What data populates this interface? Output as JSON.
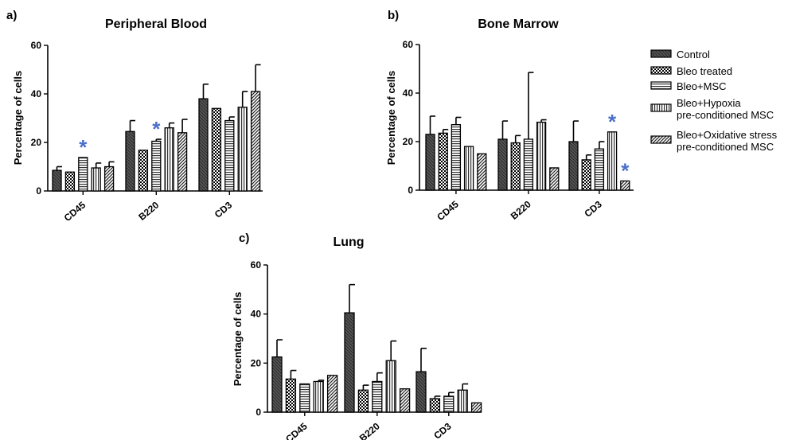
{
  "colors": {
    "star": "#4a6fc9"
  },
  "legend": [
    {
      "label": "Control",
      "pattern": "p-control"
    },
    {
      "label": "Bleo treated",
      "pattern": "p-checker"
    },
    {
      "label": "Bleo+MSC",
      "pattern": "p-hlines"
    },
    {
      "label": "Bleo+Hypoxia",
      "label2": "pre-conditioned MSC",
      "pattern": "p-vlines"
    },
    {
      "label": "Bleo+Oxidative stress",
      "label2": "pre-conditioned MSC",
      "pattern": "p-diag"
    }
  ],
  "chart_data": [
    {
      "type": "bar",
      "panel": "a)",
      "title": "Peripheral Blood",
      "ylabel": "Percentage of cells",
      "ylim": [
        0,
        60
      ],
      "yticks": [
        0,
        20,
        40,
        60
      ],
      "categories": [
        "CD45",
        "B220",
        "CD3"
      ],
      "series": [
        {
          "name": "Control",
          "values": [
            8.5,
            24.5,
            38
          ],
          "errors": [
            1.5,
            4.5,
            6
          ]
        },
        {
          "name": "Bleo treated",
          "values": [
            7.8,
            16.8,
            34
          ],
          "errors": [
            0,
            0,
            0
          ]
        },
        {
          "name": "Bleo+MSC",
          "values": [
            13.8,
            20.5,
            29
          ],
          "errors": [
            0,
            0.8,
            1.5
          ]
        },
        {
          "name": "Bleo+Hypoxia pre-conditioned MSC",
          "values": [
            9.5,
            26,
            34.5
          ],
          "errors": [
            2,
            2,
            6.5
          ]
        },
        {
          "name": "Bleo+Oxidative stress pre-conditioned MSC",
          "values": [
            10,
            24,
            41
          ],
          "errors": [
            2,
            5.5,
            11
          ]
        }
      ],
      "stars": [
        {
          "category": "CD45",
          "series": "Bleo+MSC"
        },
        {
          "category": "B220",
          "series": "Bleo+MSC"
        }
      ]
    },
    {
      "type": "bar",
      "panel": "b)",
      "title": "Bone Marrow",
      "ylabel": "Percentage of cells",
      "ylim": [
        0,
        60
      ],
      "yticks": [
        0,
        20,
        40,
        60
      ],
      "categories": [
        "CD45",
        "B220",
        "CD3"
      ],
      "series": [
        {
          "name": "Control",
          "values": [
            23,
            21,
            20
          ],
          "errors": [
            7.5,
            7.5,
            8.5
          ]
        },
        {
          "name": "Bleo treated",
          "values": [
            23.5,
            19.5,
            12.5
          ],
          "errors": [
            1.5,
            3,
            2
          ]
        },
        {
          "name": "Bleo+MSC",
          "values": [
            27,
            21,
            17
          ],
          "errors": [
            3,
            27.5,
            3
          ]
        },
        {
          "name": "Bleo+Hypoxia pre-conditioned MSC",
          "values": [
            18,
            28,
            24
          ],
          "errors": [
            0,
            1,
            0
          ]
        },
        {
          "name": "Bleo+Oxidative stress pre-conditioned MSC",
          "values": [
            15,
            9.2,
            3.8
          ],
          "errors": [
            0,
            0,
            0
          ]
        }
      ],
      "stars": [
        {
          "category": "CD3",
          "series": "Bleo+Hypoxia pre-conditioned MSC"
        },
        {
          "category": "CD3",
          "series": "Bleo+Oxidative stress pre-conditioned MSC"
        }
      ]
    },
    {
      "type": "bar",
      "panel": "c)",
      "title": "Lung",
      "ylabel": "Percentage of cells",
      "ylim": [
        0,
        60
      ],
      "yticks": [
        0,
        20,
        40,
        60
      ],
      "categories": [
        "CD45",
        "B220",
        "CD3"
      ],
      "series": [
        {
          "name": "Control",
          "values": [
            22.5,
            40.5,
            16.5
          ],
          "errors": [
            7,
            11.5,
            9.5
          ]
        },
        {
          "name": "Bleo treated",
          "values": [
            13.5,
            9,
            5.5
          ],
          "errors": [
            3.5,
            2,
            1
          ]
        },
        {
          "name": "Bleo+MSC",
          "values": [
            11.5,
            12.5,
            6.5
          ],
          "errors": [
            0,
            3.5,
            1.5
          ]
        },
        {
          "name": "Bleo+Hypoxia pre-conditioned MSC",
          "values": [
            12.5,
            21,
            9
          ],
          "errors": [
            0.5,
            8,
            2.5
          ]
        },
        {
          "name": "Bleo+Oxidative stress pre-conditioned MSC",
          "values": [
            15,
            9.5,
            3.8
          ],
          "errors": [
            0,
            0,
            0
          ]
        }
      ],
      "stars": []
    }
  ]
}
